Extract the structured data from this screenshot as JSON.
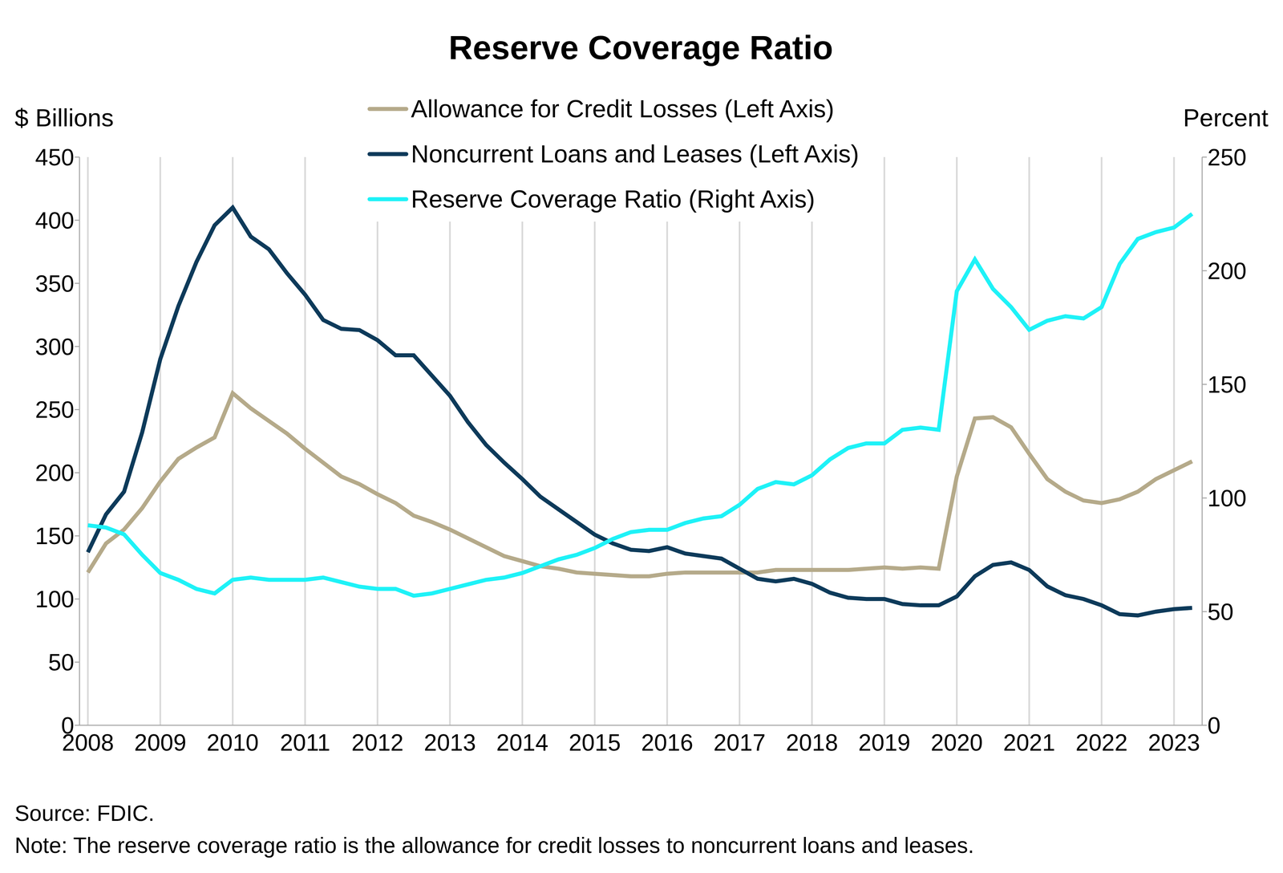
{
  "chart_data": {
    "type": "line",
    "title": "Reserve Coverage Ratio",
    "y_label": "$ Billions",
    "y2_label": "Percent",
    "source": "Source: FDIC.",
    "note": "Note: The reserve coverage ratio is the allowance for credit losses to noncurrent loans and leases.",
    "categories": [
      "2008",
      null,
      null,
      null,
      "2009",
      null,
      null,
      null,
      "2010",
      null,
      null,
      null,
      "2011",
      null,
      null,
      null,
      "2012",
      null,
      null,
      null,
      "2013",
      null,
      null,
      null,
      "2014",
      null,
      null,
      null,
      "2015",
      null,
      null,
      null,
      "2016",
      null,
      null,
      null,
      "2017",
      null,
      null,
      null,
      "2018",
      null,
      null,
      null,
      "2019",
      null,
      null,
      null,
      "2020",
      null,
      null,
      null,
      "2021",
      null,
      null,
      null,
      "2022",
      null,
      null,
      null,
      "2023",
      null
    ],
    "series": [
      {
        "name": "Allowance for Credit Losses (Left Axis)",
        "color": "#b5aa8a",
        "values": [
          121,
          144,
          155,
          172,
          193,
          211,
          220,
          228,
          263,
          251,
          241,
          231,
          219,
          208,
          197,
          191,
          183,
          176,
          166,
          161,
          155,
          148,
          141,
          134,
          130,
          126,
          124,
          121,
          120,
          119,
          118,
          118,
          120,
          121,
          121,
          121,
          121,
          121,
          123,
          123,
          123,
          123,
          123,
          124,
          125,
          124,
          125,
          124,
          197,
          243,
          244,
          236,
          215,
          195,
          185,
          178,
          176,
          179,
          185,
          195,
          202,
          209
        ]
      },
      {
        "name": "Noncurrent Loans and Leases (Left Axis)",
        "color": "#0d3a5a",
        "values": [
          137,
          167,
          185,
          232,
          290,
          332,
          367,
          396,
          410,
          387,
          377,
          358,
          341,
          321,
          314,
          313,
          305,
          293,
          293,
          277,
          261,
          240,
          222,
          208,
          195,
          181,
          171,
          161,
          151,
          144,
          139,
          138,
          141,
          136,
          134,
          132,
          124,
          116,
          114,
          116,
          112,
          105,
          101,
          100,
          100,
          96,
          95,
          95,
          102,
          118,
          127,
          129,
          123,
          110,
          103,
          100,
          95,
          88,
          87,
          90,
          92,
          93
        ]
      },
      {
        "name": "Reserve Coverage Ratio (Right Axis)",
        "color": "#1ef2f7",
        "axis": "y2",
        "values": [
          88,
          87,
          84,
          75,
          67,
          64,
          60,
          58,
          64,
          65,
          64,
          64,
          64,
          65,
          63,
          61,
          60,
          60,
          57,
          58,
          60,
          62,
          64,
          65,
          67,
          70,
          73,
          75,
          78,
          82,
          85,
          86,
          86,
          89,
          91,
          92,
          97,
          104,
          107,
          106,
          110,
          117,
          122,
          124,
          124,
          130,
          131,
          130,
          191,
          205,
          192,
          184,
          174,
          178,
          180,
          179,
          184,
          203,
          214,
          217,
          219,
          225
        ]
      }
    ],
    "ylim": [
      0,
      450
    ],
    "yticks": [
      0,
      50,
      100,
      150,
      200,
      250,
      300,
      350,
      400,
      450
    ],
    "y2lim": [
      0,
      250
    ],
    "y2ticks": [
      0,
      50,
      100,
      150,
      200,
      250
    ],
    "grid": true,
    "legend": "top"
  }
}
